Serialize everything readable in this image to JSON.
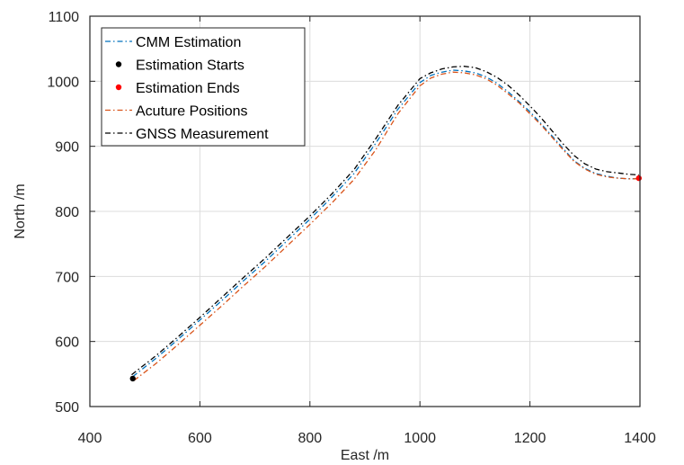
{
  "chart_data": {
    "type": "line",
    "title": "",
    "xlabel": "East /m",
    "ylabel": "North /m",
    "xlim": [
      400,
      1400
    ],
    "ylim": [
      500,
      1100
    ],
    "xticks": [
      400,
      600,
      800,
      1000,
      1200,
      1400
    ],
    "xtick_labels": [
      "400",
      "600",
      "800",
      "1000",
      "1200",
      "1400"
    ],
    "yticks": [
      500,
      600,
      700,
      800,
      900,
      1000,
      1100
    ],
    "ytick_labels": [
      "500",
      "600",
      "700",
      "800",
      "900",
      "1000",
      "1100"
    ],
    "grid": true,
    "legend_position": "top-left",
    "legend": [
      {
        "label": "CMM Estimation",
        "color": "#0072bd",
        "style": "dashdot"
      },
      {
        "label": "Estimation Starts",
        "color": "#000000",
        "style": "marker"
      },
      {
        "label": "Estimation Ends",
        "color": "#ff0000",
        "style": "marker"
      },
      {
        "label": "Acuture Positions",
        "color": "#d95319",
        "style": "dashdot"
      },
      {
        "label": "GNSS Measurement",
        "color": "#000000",
        "style": "dashdot"
      }
    ],
    "series": [
      {
        "name": "CMM Estimation",
        "color": "#0072bd",
        "points": [
          [
            478,
            546
          ],
          [
            520,
            574
          ],
          [
            560,
            603
          ],
          [
            600,
            633
          ],
          [
            640,
            663
          ],
          [
            680,
            694
          ],
          [
            720,
            724
          ],
          [
            760,
            756
          ],
          [
            800,
            788
          ],
          [
            840,
            822
          ],
          [
            880,
            858
          ],
          [
            920,
            905
          ],
          [
            960,
            957
          ],
          [
            1000,
            998
          ],
          [
            1020,
            1009
          ],
          [
            1040,
            1014
          ],
          [
            1060,
            1017
          ],
          [
            1080,
            1016
          ],
          [
            1100,
            1013
          ],
          [
            1120,
            1007
          ],
          [
            1140,
            997
          ],
          [
            1160,
            984
          ],
          [
            1180,
            969
          ],
          [
            1200,
            953
          ],
          [
            1220,
            935
          ],
          [
            1240,
            916
          ],
          [
            1260,
            897
          ],
          [
            1280,
            878
          ],
          [
            1300,
            866
          ],
          [
            1320,
            858
          ],
          [
            1340,
            854
          ],
          [
            1360,
            851
          ],
          [
            1380,
            850
          ],
          [
            1398,
            850
          ]
        ]
      },
      {
        "name": "Acuture Positions",
        "color": "#d95319",
        "points": [
          [
            480,
            540
          ],
          [
            520,
            566
          ],
          [
            560,
            595
          ],
          [
            600,
            625
          ],
          [
            640,
            655
          ],
          [
            680,
            686
          ],
          [
            720,
            716
          ],
          [
            760,
            748
          ],
          [
            800,
            780
          ],
          [
            840,
            813
          ],
          [
            880,
            849
          ],
          [
            920,
            895
          ],
          [
            960,
            950
          ],
          [
            1000,
            993
          ],
          [
            1020,
            1005
          ],
          [
            1040,
            1011
          ],
          [
            1060,
            1014
          ],
          [
            1080,
            1013
          ],
          [
            1100,
            1010
          ],
          [
            1120,
            1004
          ],
          [
            1140,
            994
          ],
          [
            1160,
            981
          ],
          [
            1180,
            967
          ],
          [
            1200,
            950
          ],
          [
            1220,
            933
          ],
          [
            1240,
            914
          ],
          [
            1260,
            895
          ],
          [
            1280,
            877
          ],
          [
            1300,
            865
          ],
          [
            1320,
            857
          ],
          [
            1340,
            853
          ],
          [
            1360,
            851
          ],
          [
            1380,
            850
          ],
          [
            1398,
            850
          ]
        ]
      },
      {
        "name": "GNSS Measurement",
        "color": "#000000",
        "points": [
          [
            476,
            549
          ],
          [
            520,
            578
          ],
          [
            560,
            607
          ],
          [
            600,
            637
          ],
          [
            640,
            668
          ],
          [
            680,
            699
          ],
          [
            720,
            729
          ],
          [
            760,
            761
          ],
          [
            800,
            793
          ],
          [
            840,
            827
          ],
          [
            880,
            864
          ],
          [
            920,
            912
          ],
          [
            960,
            963
          ],
          [
            1000,
            1004
          ],
          [
            1020,
            1013
          ],
          [
            1040,
            1019
          ],
          [
            1060,
            1022
          ],
          [
            1080,
            1023
          ],
          [
            1100,
            1021
          ],
          [
            1120,
            1015
          ],
          [
            1140,
            1006
          ],
          [
            1160,
            994
          ],
          [
            1180,
            979
          ],
          [
            1200,
            962
          ],
          [
            1220,
            944
          ],
          [
            1240,
            924
          ],
          [
            1260,
            904
          ],
          [
            1280,
            886
          ],
          [
            1300,
            873
          ],
          [
            1320,
            865
          ],
          [
            1340,
            861
          ],
          [
            1360,
            859
          ],
          [
            1380,
            857
          ],
          [
            1398,
            856
          ]
        ]
      }
    ],
    "markers": [
      {
        "name": "Estimation Starts",
        "color": "#000000",
        "x": 478,
        "y": 543
      },
      {
        "name": "Estimation Ends",
        "color": "#ff0000",
        "x": 1398,
        "y": 851
      }
    ]
  }
}
